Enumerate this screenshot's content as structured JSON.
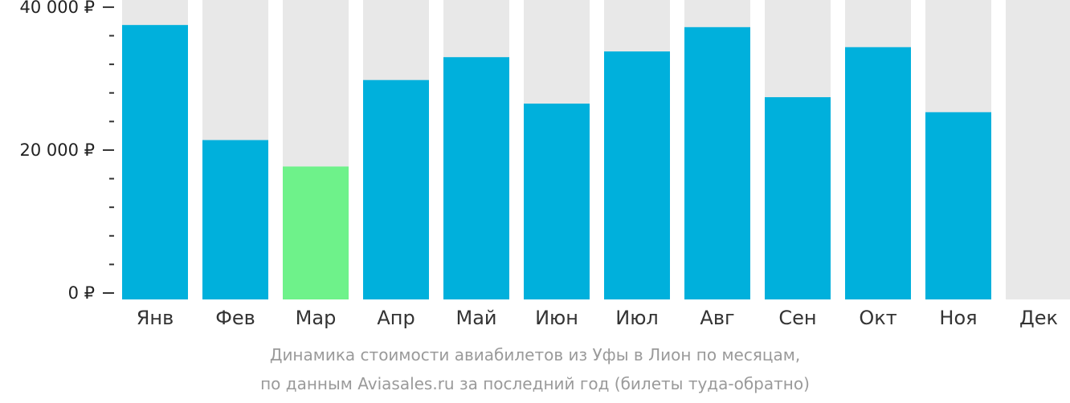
{
  "chart_data": {
    "type": "bar",
    "categories": [
      "Янв",
      "Фев",
      "Мар",
      "Апр",
      "Май",
      "Июн",
      "Июл",
      "Авг",
      "Сен",
      "Окт",
      "Ноя",
      "Дек"
    ],
    "values": [
      37500,
      21400,
      17700,
      29800,
      33000,
      26500,
      33800,
      37200,
      27400,
      34400,
      25300,
      null
    ],
    "highlight_index": 2,
    "ylim": [
      0,
      41000
    ],
    "yticks": [
      {
        "value": 0,
        "label": "0 ₽"
      },
      {
        "value": 20000,
        "label": "20 000 ₽"
      },
      {
        "value": 40000,
        "label": "40 000 ₽"
      }
    ],
    "minor_tick_step": 4000,
    "caption_lines": [
      "Динамика стоимости авиабилетов из Уфы в Лион по месяцам,",
      "по данным Aviasales.ru за последний год (билеты туда-обратно)"
    ],
    "colors": {
      "bar": "#00b0dc",
      "highlight": "#6ef28a",
      "background_bar": "#e8e8e8",
      "axis": "#333333",
      "caption": "#9a9a9a"
    }
  }
}
